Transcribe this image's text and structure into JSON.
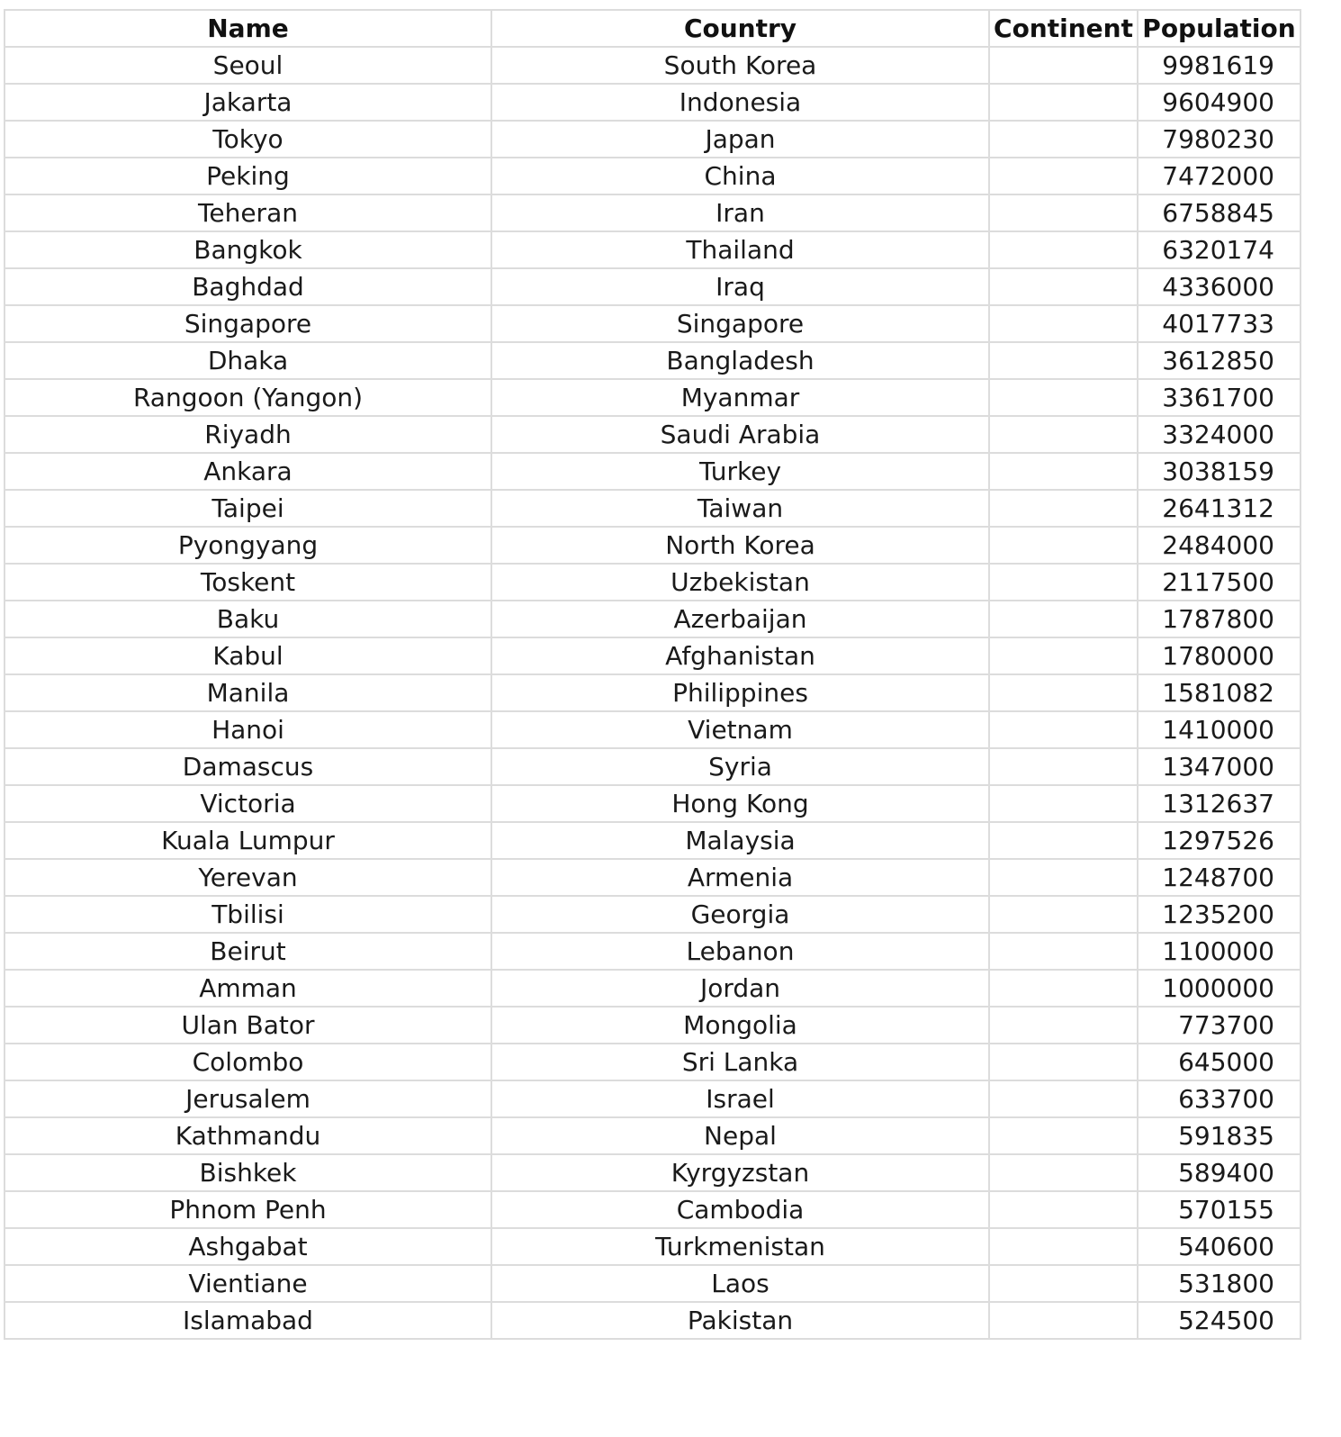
{
  "table": {
    "headers": [
      "Name",
      "Country",
      "Continent",
      "Population"
    ],
    "rows": [
      [
        "Seoul",
        "South Korea",
        "",
        "9981619"
      ],
      [
        "Jakarta",
        "Indonesia",
        "",
        "9604900"
      ],
      [
        "Tokyo",
        "Japan",
        "",
        "7980230"
      ],
      [
        "Peking",
        "China",
        "",
        "7472000"
      ],
      [
        "Teheran",
        "Iran",
        "",
        "6758845"
      ],
      [
        "Bangkok",
        "Thailand",
        "",
        "6320174"
      ],
      [
        "Baghdad",
        "Iraq",
        "",
        "4336000"
      ],
      [
        "Singapore",
        "Singapore",
        "",
        "4017733"
      ],
      [
        "Dhaka",
        "Bangladesh",
        "",
        "3612850"
      ],
      [
        "Rangoon (Yangon)",
        "Myanmar",
        "",
        "3361700"
      ],
      [
        "Riyadh",
        "Saudi Arabia",
        "",
        "3324000"
      ],
      [
        "Ankara",
        "Turkey",
        "",
        "3038159"
      ],
      [
        "Taipei",
        "Taiwan",
        "",
        "2641312"
      ],
      [
        "Pyongyang",
        "North Korea",
        "",
        "2484000"
      ],
      [
        "Toskent",
        "Uzbekistan",
        "",
        "2117500"
      ],
      [
        "Baku",
        "Azerbaijan",
        "",
        "1787800"
      ],
      [
        "Kabul",
        "Afghanistan",
        "",
        "1780000"
      ],
      [
        "Manila",
        "Philippines",
        "",
        "1581082"
      ],
      [
        "Hanoi",
        "Vietnam",
        "",
        "1410000"
      ],
      [
        "Damascus",
        "Syria",
        "",
        "1347000"
      ],
      [
        "Victoria",
        "Hong Kong",
        "",
        "1312637"
      ],
      [
        "Kuala Lumpur",
        "Malaysia",
        "",
        "1297526"
      ],
      [
        "Yerevan",
        "Armenia",
        "",
        "1248700"
      ],
      [
        "Tbilisi",
        "Georgia",
        "",
        "1235200"
      ],
      [
        "Beirut",
        "Lebanon",
        "",
        "1100000"
      ],
      [
        "Amman",
        "Jordan",
        "",
        "1000000"
      ],
      [
        "Ulan Bator",
        "Mongolia",
        "",
        "773700"
      ],
      [
        "Colombo",
        "Sri Lanka",
        "",
        "645000"
      ],
      [
        "Jerusalem",
        "Israel",
        "",
        "633700"
      ],
      [
        "Kathmandu",
        "Nepal",
        "",
        "591835"
      ],
      [
        "Bishkek",
        "Kyrgyzstan",
        "",
        "589400"
      ],
      [
        "Phnom Penh",
        "Cambodia",
        "",
        "570155"
      ],
      [
        "Ashgabat",
        "Turkmenistan",
        "",
        "540600"
      ],
      [
        "Vientiane",
        "Laos",
        "",
        "531800"
      ],
      [
        "Islamabad",
        "Pakistan",
        "",
        "524500"
      ]
    ]
  }
}
